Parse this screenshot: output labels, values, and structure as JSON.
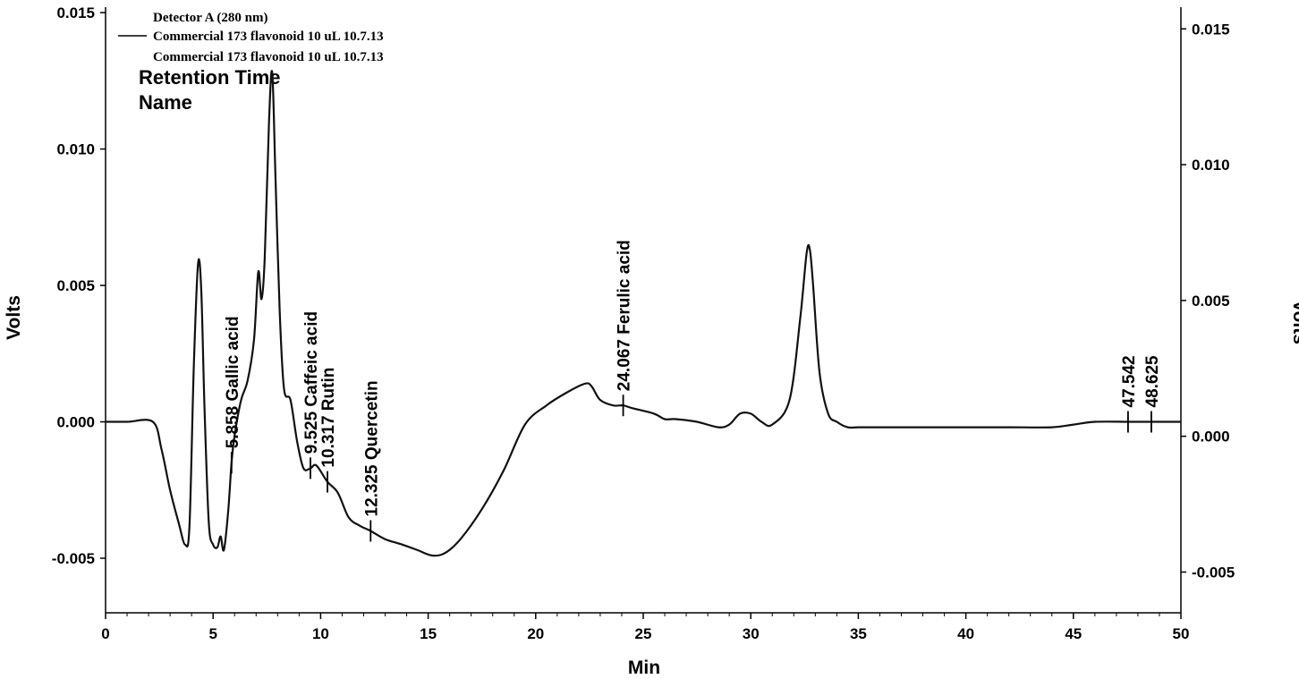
{
  "chart_data": {
    "type": "line",
    "title": "",
    "xlabel": "Min",
    "ylabel_left": "Volts",
    "ylabel_right": "Volts",
    "xlim": [
      0,
      50
    ],
    "ylim_left": [
      -0.007,
      0.0152
    ],
    "ylim_right": [
      -0.0065,
      0.0158
    ],
    "x_ticks": [
      "0",
      "5",
      "10",
      "15",
      "20",
      "25",
      "30",
      "35",
      "40",
      "45",
      "50"
    ],
    "y_ticks_left": [
      "0.015",
      "0.010",
      "0.005",
      "0.000",
      "-0.005"
    ],
    "y_ticks_right": [
      "0.015",
      "0.010",
      "0.005",
      "0.000",
      "-0.005"
    ],
    "grid": false,
    "legend": {
      "header": "Detector A (280 nm)",
      "entries": [
        "Commercial 173 flavonoid 10 uL 10.7.13",
        "Commercial 173 flavonoid 10 uL 10.7.13"
      ]
    },
    "peak_label_header": [
      "Retention Time",
      "Name"
    ],
    "series": [
      {
        "name": "Commercial 173 flavonoid 10 uL 10.7.13",
        "color": "#111111",
        "x": [
          0,
          1.0,
          2.2,
          2.6,
          3.0,
          3.4,
          3.7,
          3.9,
          4.1,
          4.3,
          4.45,
          4.6,
          4.8,
          5.0,
          5.2,
          5.35,
          5.5,
          5.7,
          5.858,
          6.0,
          6.3,
          6.6,
          6.9,
          7.1,
          7.25,
          7.4,
          7.6,
          7.75,
          7.9,
          8.1,
          8.3,
          8.6,
          8.9,
          9.2,
          9.525,
          9.8,
          10.317,
          10.8,
          11.3,
          11.8,
          12.325,
          13.0,
          13.8,
          14.5,
          15.2,
          15.8,
          16.5,
          17.5,
          18.5,
          19.5,
          20.5,
          21.5,
          22.3,
          22.6,
          23.0,
          23.6,
          24.067,
          24.5,
          25.5,
          26.0,
          26.5,
          27.5,
          28.5,
          29.0,
          29.5,
          30.0,
          30.5,
          31.0,
          31.8,
          32.3,
          32.6,
          32.75,
          32.9,
          33.2,
          33.6,
          34.0,
          34.5,
          35.0,
          36.0,
          38.0,
          40.0,
          42.0,
          44.0,
          45.0,
          46.0,
          47.542,
          48.625,
          50.0
        ],
        "y": [
          0.0,
          0.0,
          0.0,
          -0.001,
          -0.0025,
          -0.0037,
          -0.0045,
          -0.0038,
          0.002,
          0.0058,
          0.0048,
          0.0005,
          -0.0037,
          -0.0045,
          -0.0046,
          -0.0042,
          -0.0047,
          -0.0033,
          -0.0015,
          -0.0005,
          0.0008,
          0.0015,
          0.003,
          0.0055,
          0.0045,
          0.006,
          0.011,
          0.0128,
          0.009,
          0.004,
          0.0012,
          0.0008,
          -0.0007,
          -0.0017,
          -0.0017,
          -0.0016,
          -0.0022,
          -0.0026,
          -0.0035,
          -0.0038,
          -0.004,
          -0.0043,
          -0.0045,
          -0.0047,
          -0.0049,
          -0.0048,
          -0.0043,
          -0.0032,
          -0.0018,
          -0.0001,
          0.0006,
          0.0011,
          0.0014,
          0.0013,
          0.0008,
          0.0006,
          0.0006,
          0.0005,
          0.0003,
          0.0001,
          0.0001,
          0.0,
          -0.0002,
          -0.0001,
          0.0003,
          0.0003,
          0.0,
          -0.0001,
          0.0008,
          0.0038,
          0.0062,
          0.0063,
          0.005,
          0.0018,
          0.0003,
          0.0,
          -0.0002,
          -0.0002,
          -0.0002,
          -0.0002,
          -0.0002,
          -0.0002,
          -0.0002,
          -0.0001,
          0.0,
          0.0,
          0.0,
          0.0
        ]
      }
    ],
    "peaks": [
      {
        "rt": "5.858",
        "name": "Gallic acid",
        "x": 5.858,
        "y": -0.0015
      },
      {
        "rt": "9.525",
        "name": "Caffeic acid",
        "x": 9.525,
        "y": -0.0017
      },
      {
        "rt": "10.317",
        "name": "Rutin",
        "x": 10.317,
        "y": -0.0022
      },
      {
        "rt": "12.325",
        "name": "Quercetin",
        "x": 12.325,
        "y": -0.004
      },
      {
        "rt": "24.067",
        "name": "Ferulic acid",
        "x": 24.067,
        "y": 0.0006
      },
      {
        "rt": "47.542",
        "name": "",
        "x": 47.542,
        "y": 0.0
      },
      {
        "rt": "48.625",
        "name": "",
        "x": 48.625,
        "y": 0.0
      }
    ]
  }
}
